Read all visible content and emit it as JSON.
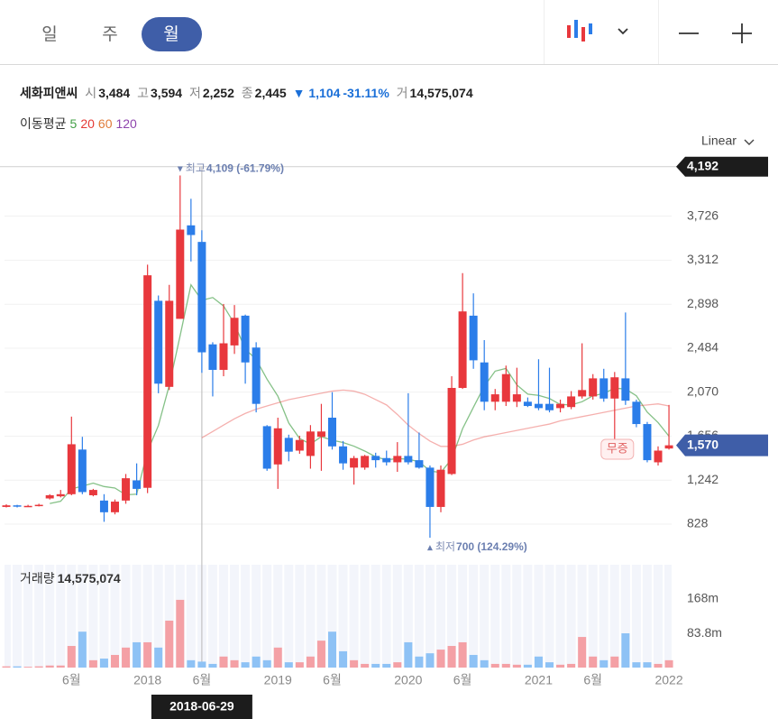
{
  "header": {
    "tabs": [
      "일",
      "주",
      "월"
    ]
  },
  "info": {
    "name": "세화피앤씨",
    "fields": [
      {
        "label": "시",
        "value": "3,484"
      },
      {
        "label": "고",
        "value": "3,594"
      },
      {
        "label": "저",
        "value": "2,252"
      },
      {
        "label": "종",
        "value": "2,445"
      }
    ],
    "change": "▼ 1,104",
    "change_pct": "-31.11%",
    "volume_label": "거",
    "volume": "14,575,074"
  },
  "scale_mode": "Linear",
  "chart_data": {
    "type": "candlestick",
    "up_color": "#e8383d",
    "down_color": "#2b7de9",
    "up_volume_color": "#f4a0a5",
    "down_volume_color": "#8ec2f5",
    "open": [
      990,
      1005,
      995,
      1000,
      1070,
      1090,
      1110,
      1530,
      1100,
      1050,
      940,
      1050,
      1240,
      1170,
      2930,
      2120,
      2760,
      3640,
      3484,
      2520,
      2280,
      2510,
      2790,
      2490,
      1750,
      1390,
      1640,
      1520,
      1470,
      1650,
      1830,
      1560,
      1360,
      1360,
      1470,
      1450,
      1410,
      1470,
      1430,
      1360,
      990,
      1300,
      2110,
      2790,
      2350,
      1980,
      1980,
      1980,
      1980,
      1960,
      1960,
      1920,
      1930,
      2030,
      2030,
      2200,
      2010,
      2200,
      1980,
      1770,
      1410,
      1540
    ],
    "high": [
      1015,
      1010,
      1010,
      1020,
      1110,
      1150,
      1840,
      1650,
      1160,
      1110,
      1060,
      1300,
      1400,
      3270,
      2980,
      3080,
      4109,
      3890,
      3594,
      2540,
      2900,
      2890,
      2800,
      2540,
      1760,
      1830,
      1670,
      1660,
      1760,
      1960,
      2070,
      1610,
      1470,
      1480,
      1500,
      1520,
      1600,
      2060,
      1690,
      1380,
      1380,
      2220,
      3190,
      3000,
      2560,
      2100,
      2320,
      2300,
      2020,
      2380,
      2300,
      2000,
      2080,
      2530,
      2240,
      2290,
      2260,
      2820,
      2000,
      1790,
      1560,
      1950
    ],
    "low": [
      985,
      985,
      990,
      995,
      1060,
      1080,
      1100,
      1110,
      1090,
      850,
      920,
      1020,
      1100,
      1120,
      2060,
      2090,
      2760,
      3300,
      2252,
      2030,
      2220,
      2430,
      2150,
      1880,
      1330,
      1160,
      1420,
      1490,
      1350,
      1330,
      1530,
      1340,
      1200,
      1340,
      1360,
      1380,
      1320,
      1390,
      1350,
      700,
      940,
      1290,
      2100,
      2290,
      1900,
      1900,
      1940,
      1930,
      1930,
      1900,
      1880,
      1880,
      1910,
      2010,
      2000,
      1980,
      1620,
      1950,
      1740,
      1410,
      1380,
      1530
    ],
    "close": [
      1005,
      995,
      1000,
      1010,
      1100,
      1110,
      1580,
      1130,
      1150,
      940,
      1040,
      1260,
      1160,
      3170,
      2150,
      2930,
      3600,
      3549,
      2445,
      2280,
      2530,
      2770,
      2350,
      1960,
      1350,
      1730,
      1510,
      1620,
      1700,
      1700,
      1560,
      1400,
      1450,
      1470,
      1430,
      1410,
      1470,
      1410,
      1360,
      990,
      1340,
      2110,
      2830,
      2370,
      1980,
      2050,
      2240,
      2050,
      1940,
      1920,
      1900,
      1960,
      2030,
      2090,
      2200,
      2010,
      2210,
      1990,
      1770,
      1430,
      1520,
      1570
    ],
    "volume": [
      3000000,
      3000000,
      2000000,
      3000000,
      5000000,
      5000000,
      53000000,
      88000000,
      18000000,
      22000000,
      31000000,
      49000000,
      62000000,
      62000000,
      49000000,
      115000000,
      166000000,
      18000000,
      14575074,
      9000000,
      27000000,
      18000000,
      13000000,
      27000000,
      18000000,
      49000000,
      13000000,
      13000000,
      27000000,
      66000000,
      88000000,
      40000000,
      18000000,
      9000000,
      9000000,
      9000000,
      13000000,
      62000000,
      27000000,
      35000000,
      44000000,
      53000000,
      62000000,
      31000000,
      18000000,
      9000000,
      9000000,
      7000000,
      7000000,
      27000000,
      13000000,
      7000000,
      9000000,
      75000000,
      27000000,
      18000000,
      27000000,
      84000000,
      13000000,
      13000000,
      9000000,
      18000000
    ],
    "ma_legend_title": "이동평균",
    "moving_averages": [
      {
        "name": "5",
        "color": "#43a047",
        "values": [
          null,
          null,
          null,
          null,
          1022,
          1043,
          1160,
          1186,
          1214,
          1182,
          1168,
          1104,
          1110,
          1514,
          1756,
          2134,
          2602,
          3080,
          2935,
          2961,
          2881,
          2715,
          2475,
          2378,
          2192,
          2032,
          1780,
          1634,
          1582,
          1652,
          1618,
          1596,
          1562,
          1516,
          1462,
          1432,
          1446,
          1438,
          1416,
          1328,
          1314,
          1442,
          1726,
          1928,
          2126,
          2268,
          2294,
          2138,
          2052,
          2040,
          2010,
          1954,
          1950,
          1980,
          2036,
          2058,
          2108,
          2100,
          2036,
          1882,
          1784,
          1656
        ]
      },
      {
        "name": "20",
        "color": "#e53935",
        "values": [
          null,
          null,
          null,
          null,
          null,
          null,
          null,
          null,
          null,
          null,
          null,
          null,
          null,
          null,
          null,
          null,
          null,
          null,
          1640,
          1700,
          1760,
          1820,
          1870,
          1910,
          1940,
          1970,
          2000,
          2020,
          2040,
          2060,
          2080,
          2090,
          2080,
          2050,
          2000,
          1950,
          1860,
          1760,
          1680,
          1610,
          1560,
          1560,
          1580,
          1620,
          1650,
          1670,
          1690,
          1710,
          1730,
          1750,
          1770,
          1800,
          1820,
          1840,
          1860,
          1880,
          1900,
          1920,
          1940,
          1950,
          1960,
          1940
        ]
      },
      {
        "name": "60",
        "color": "#e07b39"
      },
      {
        "name": "120",
        "color": "#8e44ad"
      }
    ],
    "ylim": [
      497,
      4275
    ],
    "yticks": [
      828,
      {
        "value": 1242,
        "label": "1,242"
      },
      {
        "value": 1656,
        "label": "1,656"
      },
      {
        "value": 2070,
        "label": "2,070"
      },
      {
        "value": 2484,
        "label": "2,484"
      },
      {
        "value": 2898,
        "label": "2,898"
      },
      {
        "value": 3312,
        "label": "3,312"
      },
      {
        "value": 3726,
        "label": "3,726"
      }
    ],
    "grid": true,
    "high_line": {
      "value": 4192,
      "label": "4,192"
    },
    "last_price": {
      "value": 1570,
      "label": "1,570"
    },
    "high_annotation": {
      "prefix": "최고",
      "text": "4,109 (-61.79%)"
    },
    "low_annotation": {
      "prefix": "최저",
      "text": "700 (124.29%)"
    },
    "events": [
      {
        "index": 56,
        "label": "무증"
      }
    ],
    "volume_title": "거래량",
    "volume_title_value": "14,575,074",
    "volume_ylim": [
      0,
      252000000
    ],
    "volume_ticks": [
      {
        "value": 168000000,
        "label": "168m"
      },
      {
        "value": 83800000,
        "label": "83.8m"
      }
    ],
    "xticks": [
      {
        "value": 6,
        "label": "6월"
      },
      {
        "value": 13,
        "label": "2018"
      },
      {
        "value": 18,
        "label": "6월"
      },
      {
        "value": 25,
        "label": "2019"
      },
      {
        "value": 30,
        "label": "6월"
      },
      {
        "value": 37,
        "label": "2020"
      },
      {
        "value": 42,
        "label": "6월"
      },
      {
        "value": 49,
        "label": "2021"
      },
      {
        "value": 54,
        "label": "6월"
      },
      {
        "value": 61,
        "label": "2022"
      }
    ],
    "crosshair_index": 18,
    "crosshair_date": "2018-06-29"
  }
}
